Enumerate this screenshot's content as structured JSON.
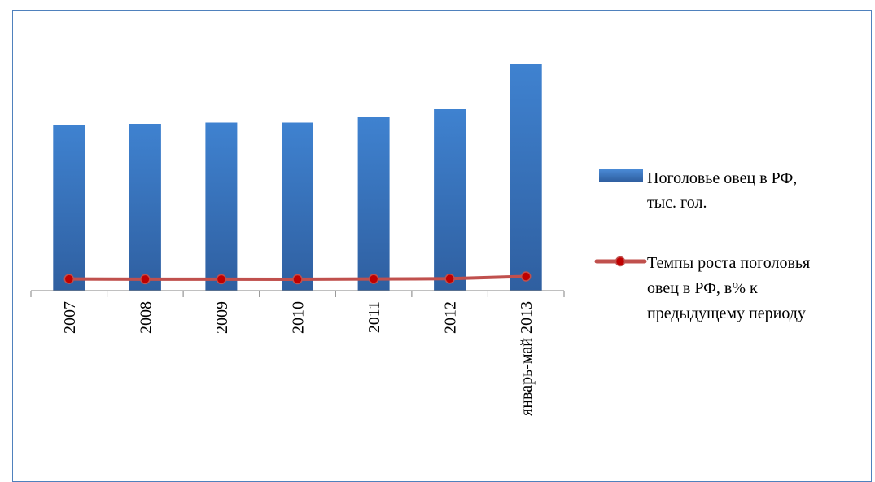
{
  "chart_data": {
    "type": "bar",
    "categories": [
      "2007",
      "2008",
      "2009",
      "2010",
      "2011",
      "2012",
      "январь-май 2013"
    ],
    "series": [
      {
        "name": "Поголовье овец в РФ, тыс. гол.",
        "type": "bar",
        "values": [
          20300,
          20500,
          20650,
          20650,
          21300,
          22300,
          27800
        ],
        "color": "#3e7cc5"
      },
      {
        "name": "Темпы роста поголовья овец в РФ, в% к предыдущему периоду",
        "type": "line",
        "values": [
          103,
          101,
          101,
          100,
          103,
          105,
          125
        ],
        "color": "#c0504d",
        "marker_color": "#c00000"
      }
    ],
    "ylim": [
      0,
      28000
    ],
    "grid": false,
    "legend_position": "right"
  },
  "legend": {
    "bar_label_lines": [
      "Поголовье овец в РФ,",
      "тыс. гол."
    ],
    "line_label_lines": [
      "Темпы роста поголовья",
      "овец в РФ, в% к",
      "предыдущему периоду"
    ]
  }
}
